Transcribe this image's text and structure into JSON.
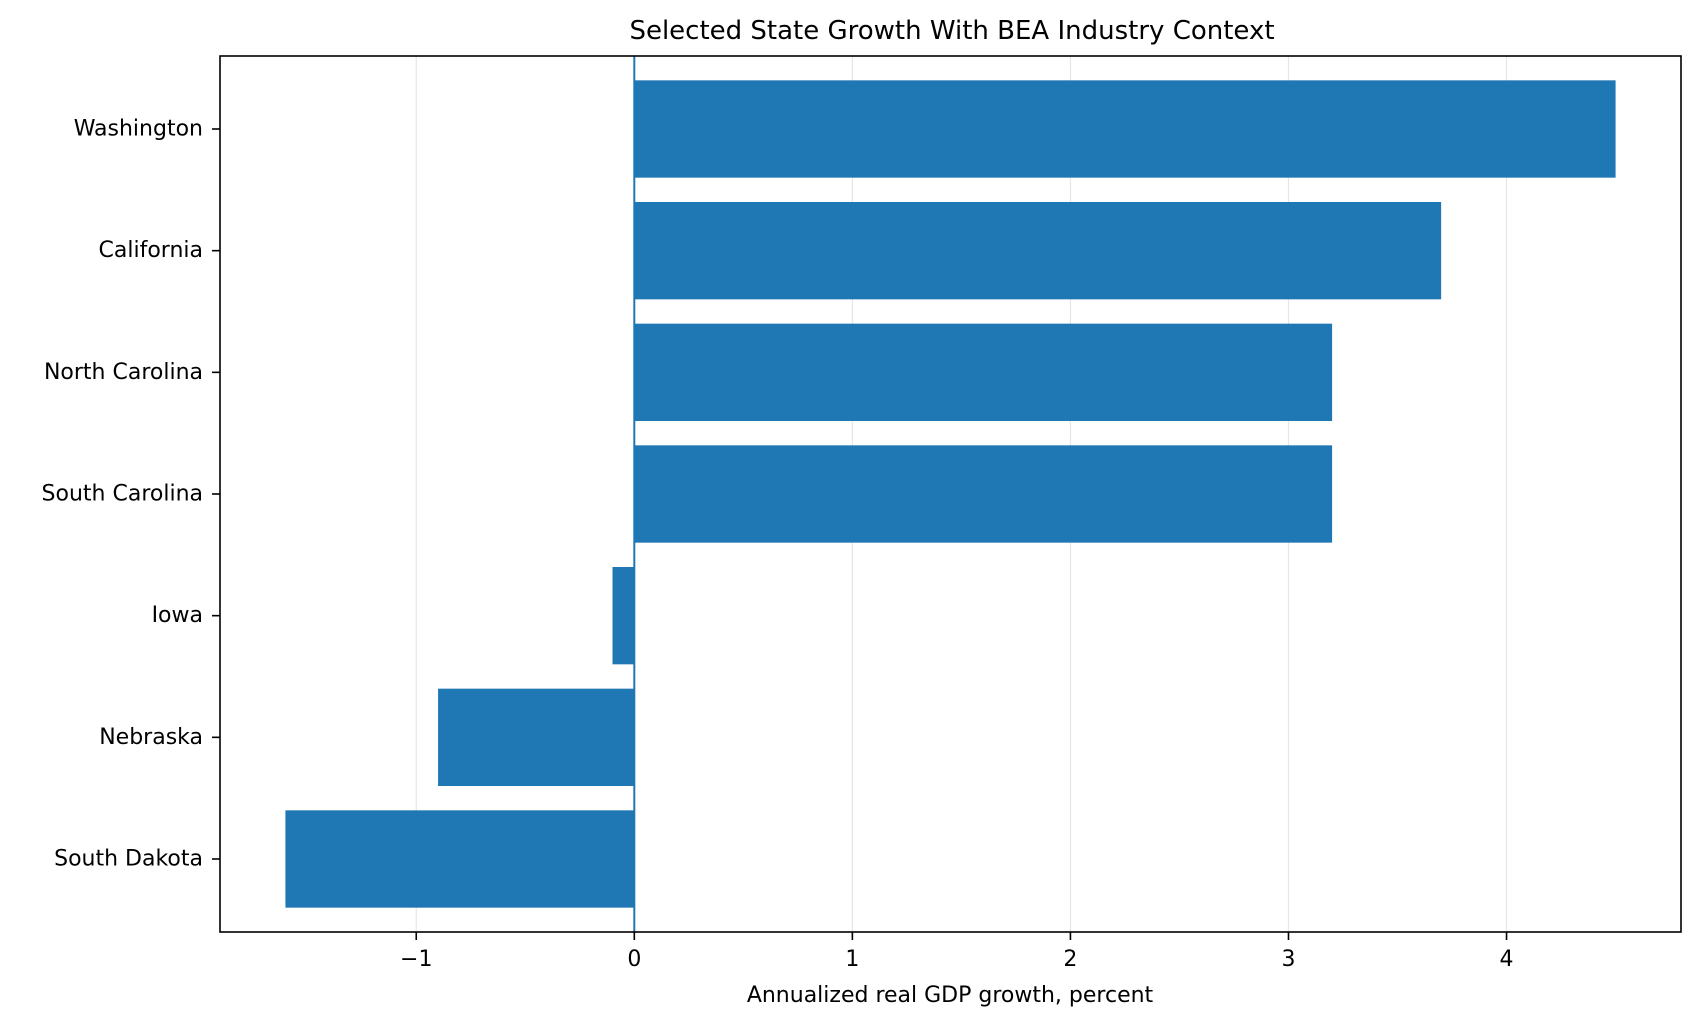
{
  "chart_data": {
    "type": "bar",
    "orientation": "horizontal",
    "title": "Selected State Growth With BEA Industry Context",
    "xlabel": "Annualized real GDP growth, percent",
    "ylabel": "",
    "categories": [
      "Washington",
      "California",
      "North Carolina",
      "South Carolina",
      "Iowa",
      "Nebraska",
      "South Dakota"
    ],
    "values": [
      4.5,
      3.7,
      3.2,
      3.2,
      -0.1,
      -0.9,
      -1.6
    ],
    "xlim": [
      -1.9,
      4.8
    ],
    "xticks": [
      -1,
      0,
      1,
      2,
      3,
      4
    ],
    "xtick_labels": [
      "−1",
      "0",
      "1",
      "2",
      "3",
      "4"
    ],
    "grid": "vertical, x-axis",
    "reference_line": 0,
    "legend": "none",
    "colors": {
      "bar": "#1f77b4",
      "zero_line": "#1f77b4",
      "grid": "#e6e6e6",
      "axes": "#000000"
    }
  }
}
